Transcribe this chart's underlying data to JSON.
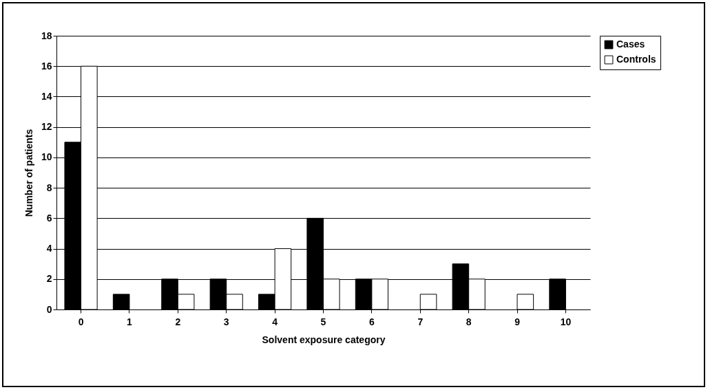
{
  "chart_data": {
    "type": "bar",
    "xlabel": "Solvent exposure category",
    "ylabel": "Number of patients",
    "categories": [
      "0",
      "1",
      "2",
      "3",
      "4",
      "5",
      "6",
      "7",
      "8",
      "9",
      "10"
    ],
    "series": [
      {
        "name": "Cases",
        "color": "#000000",
        "values": [
          11,
          1,
          2,
          2,
          1,
          6,
          2,
          0,
          3,
          0,
          2
        ]
      },
      {
        "name": "Controls",
        "color": "#ffffff",
        "values": [
          16,
          0,
          1,
          1,
          4,
          2,
          2,
          1,
          2,
          1,
          0
        ]
      }
    ],
    "ylim": [
      0,
      18
    ],
    "yticks": [
      0,
      2,
      4,
      6,
      8,
      10,
      12,
      14,
      16,
      18
    ],
    "grid": "y",
    "legend": "right"
  }
}
